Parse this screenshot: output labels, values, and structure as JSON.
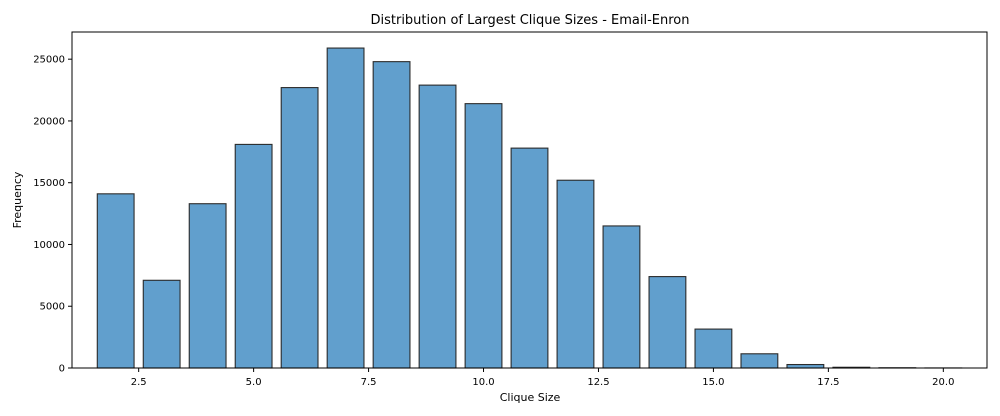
{
  "chart_data": {
    "type": "bar",
    "title": "Distribution of Largest Clique Sizes - Email-Enron",
    "xlabel": "Clique Size",
    "ylabel": "Frequency",
    "x": [
      2,
      3,
      4,
      5,
      6,
      7,
      8,
      9,
      10,
      11,
      12,
      13,
      14,
      15,
      16,
      17,
      18,
      19,
      20
    ],
    "values": [
      14100,
      7100,
      13300,
      18100,
      22700,
      25900,
      24800,
      22900,
      21400,
      17800,
      15200,
      11500,
      7400,
      3150,
      1150,
      280,
      60,
      20,
      5
    ],
    "xlim": [
      1.05,
      20.95
    ],
    "ylim": [
      0,
      27200
    ],
    "xticks": [
      2.5,
      5.0,
      7.5,
      10.0,
      12.5,
      15.0,
      17.5,
      20.0
    ],
    "xtick_labels": [
      "2.5",
      "5.0",
      "7.5",
      "10.0",
      "12.5",
      "15.0",
      "17.5",
      "20.0"
    ],
    "yticks": [
      0,
      5000,
      10000,
      15000,
      20000,
      25000
    ],
    "ytick_labels": [
      "0",
      "5000",
      "10000",
      "15000",
      "20000",
      "25000"
    ],
    "bar_width": 0.8,
    "bar_color": "#619fcd",
    "edge_color": "#2b2b2b",
    "grid": false,
    "legend": "none"
  }
}
